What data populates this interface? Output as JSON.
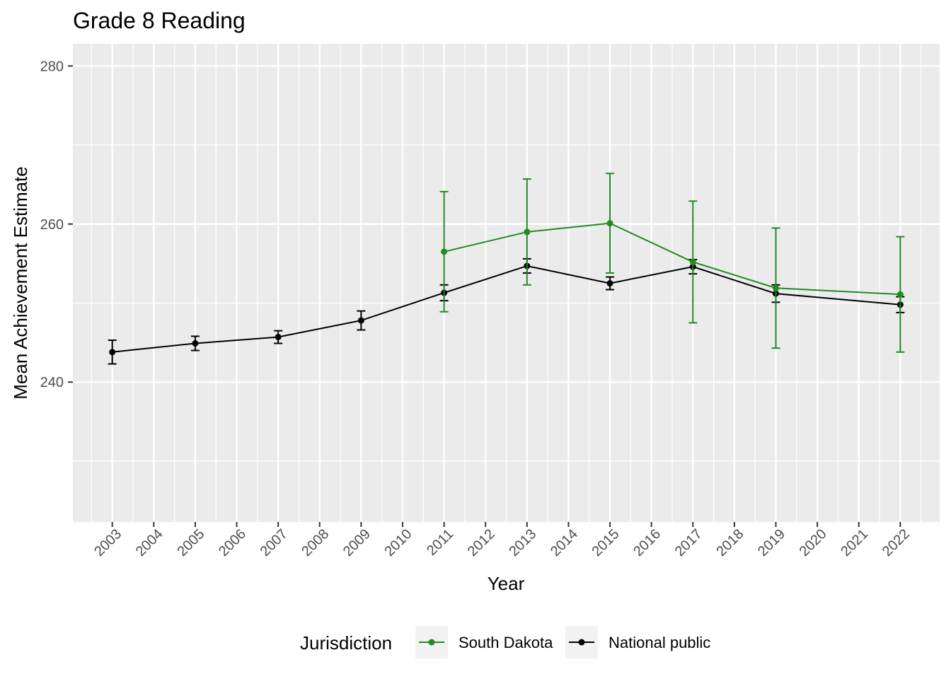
{
  "chart_data": {
    "type": "line",
    "title": "Grade 8 Reading",
    "xlabel": "Year",
    "ylabel": "Mean Achievement Estimate",
    "xlim": [
      2002.05,
      2022.95
    ],
    "ylim": [
      222.3,
      282.8
    ],
    "x_ticks": [
      2003,
      2004,
      2005,
      2006,
      2007,
      2008,
      2009,
      2010,
      2011,
      2012,
      2013,
      2014,
      2015,
      2016,
      2017,
      2018,
      2019,
      2020,
      2021,
      2022
    ],
    "y_ticks": [
      240,
      260,
      280
    ],
    "y_minor": [
      230,
      250,
      270
    ],
    "grid": true,
    "legend": {
      "title": "Jurisdiction",
      "placement": "bottom"
    },
    "series": [
      {
        "name": "South Dakota",
        "color": "#228B22",
        "x": [
          2011,
          2013,
          2015,
          2017,
          2019,
          2022
        ],
        "y": [
          256.5,
          259.0,
          260.1,
          255.2,
          251.9,
          251.1
        ],
        "error": [
          7.6,
          6.7,
          6.3,
          7.7,
          7.6,
          7.3
        ]
      },
      {
        "name": "National public",
        "color": "#000000",
        "x": [
          2003,
          2005,
          2007,
          2009,
          2011,
          2013,
          2015,
          2017,
          2019,
          2022
        ],
        "y": [
          243.8,
          244.9,
          245.7,
          247.8,
          251.3,
          254.7,
          252.5,
          254.6,
          251.2,
          249.8
        ],
        "error": [
          1.5,
          0.9,
          0.8,
          1.2,
          1.0,
          0.9,
          0.8,
          0.9,
          1.1,
          1.0
        ]
      }
    ]
  }
}
